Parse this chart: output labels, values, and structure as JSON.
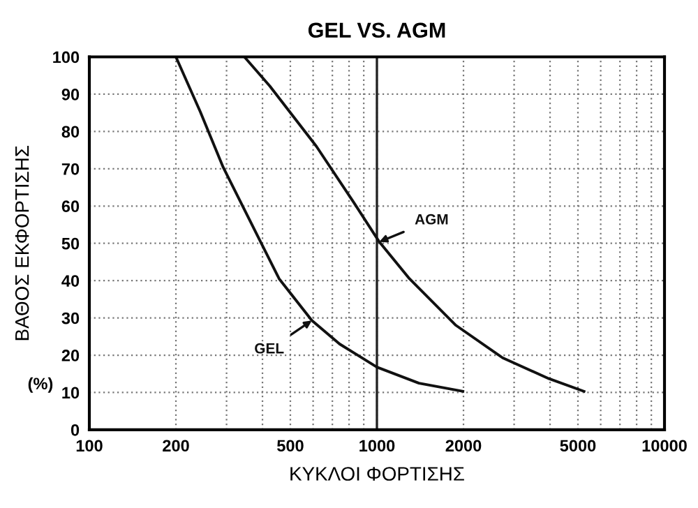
{
  "chart_data": {
    "type": "line",
    "title": "GEL VS. AGM",
    "xlabel": "ΚΥΚΛΟΙ ΦΟΡΤΙΣΗΣ",
    "ylabel": "ΒΑΘΟΣ ΕΚΦΟΡΤΙΣΗΣ",
    "annotations": [
      "(%)"
    ],
    "log": "x",
    "xlim": [
      100,
      10000
    ],
    "ylim": [
      0,
      100
    ],
    "xticks": [
      100,
      200,
      {
        "value": 300,
        "label": null
      },
      {
        "value": 400,
        "label": null
      },
      500,
      {
        "value": 600,
        "label": null
      },
      {
        "value": 700,
        "label": null
      },
      {
        "value": 800,
        "label": null
      },
      {
        "value": 900,
        "label": null
      },
      1000,
      2000,
      {
        "value": 3000,
        "label": null
      },
      {
        "value": 4000,
        "label": null
      },
      5000,
      {
        "value": 6000,
        "label": null
      },
      {
        "value": 7000,
        "label": null
      },
      {
        "value": 8000,
        "label": null
      },
      {
        "value": 9000,
        "label": null
      },
      10000
    ],
    "yticks": [
      0,
      10,
      20,
      30,
      40,
      50,
      60,
      70,
      80,
      90,
      100
    ],
    "grid": true,
    "legend": false,
    "marker": "none",
    "line_style": "solid",
    "ref_lines": [
      {
        "axis": "x",
        "value": 1000,
        "color": "#222222",
        "line_style": "solid"
      }
    ],
    "series": [
      {
        "name": "GEL",
        "color": "#111111",
        "x": [
          200,
          243,
          292,
          394,
          457,
          594,
          742,
          1000,
          1400,
          1990
        ],
        "values": [
          100,
          85.3,
          70.4,
          50.4,
          40.5,
          29.3,
          23,
          16.8,
          12.5,
          10.3
        ]
      },
      {
        "name": "AGM",
        "color": "#111111",
        "x": [
          346,
          424,
          616,
          830,
          1019,
          1298,
          1883,
          2735,
          3966,
          5250
        ],
        "values": [
          100,
          92.2,
          76,
          61,
          50.4,
          40.5,
          28,
          19.3,
          13.7,
          10.3
        ]
      }
    ]
  }
}
